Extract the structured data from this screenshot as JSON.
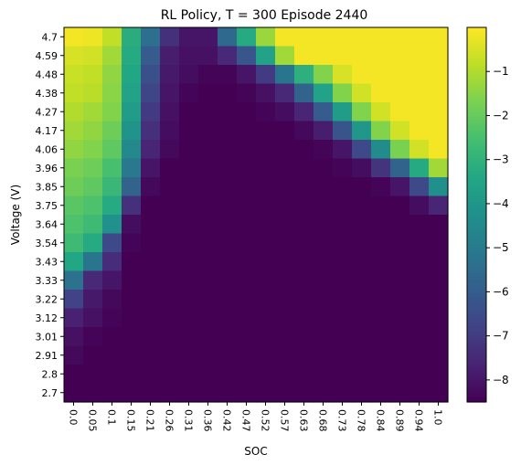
{
  "chart_data": {
    "type": "heatmap",
    "title": "RL Policy, T = 300 Episode 2440",
    "xlabel": "SOC",
    "ylabel": "Voltage (V)",
    "x_ticks": [
      "0.0",
      "0.05",
      "0.1",
      "0.15",
      "0.21",
      "0.26",
      "0.31",
      "0.36",
      "0.42",
      "0.47",
      "0.52",
      "0.57",
      "0.63",
      "0.68",
      "0.73",
      "0.78",
      "0.84",
      "0.89",
      "0.94",
      "1.0"
    ],
    "y_ticks_top_to_bottom": [
      "4.7",
      "4.59",
      "4.48",
      "4.38",
      "4.27",
      "4.17",
      "4.06",
      "3.96",
      "3.85",
      "3.75",
      "3.64",
      "3.54",
      "3.43",
      "3.33",
      "3.22",
      "3.12",
      "3.01",
      "2.91",
      "2.8",
      "2.7"
    ],
    "colorbar": {
      "colormap": "viridis",
      "range": [
        -8.5,
        0
      ],
      "ticks": [
        -8,
        -7,
        -6,
        -5,
        -4,
        -3,
        -2,
        -1
      ],
      "tick_labels": [
        "−8",
        "−7",
        "−6",
        "−5",
        "−4",
        "−3",
        "−2",
        "−1"
      ]
    },
    "rows_top_to_bottom": [
      [
        -0.1,
        -0.2,
        -0.8,
        -3.2,
        -5.4,
        -7.3,
        -8.0,
        -8.0,
        -5.6,
        -3.3,
        -1.3,
        -0.1,
        -0.1,
        -0.1,
        -0.1,
        -0.1,
        -0.1,
        -0.1,
        -0.1,
        -0.1
      ],
      [
        -0.5,
        -0.6,
        -1.2,
        -3.3,
        -6.0,
        -7.8,
        -8.1,
        -8.1,
        -7.5,
        -6.2,
        -3.6,
        -1.2,
        -0.1,
        -0.1,
        -0.1,
        -0.1,
        -0.1,
        -0.1,
        -0.1,
        -0.1
      ],
      [
        -0.7,
        -0.8,
        -1.4,
        -3.4,
        -6.4,
        -7.9,
        -8.2,
        -8.4,
        -8.4,
        -8.0,
        -7.0,
        -5.2,
        -3.1,
        -1.6,
        -0.5,
        -0.1,
        -0.1,
        -0.1,
        -0.1,
        -0.1
      ],
      [
        -0.8,
        -0.9,
        -1.5,
        -3.6,
        -6.7,
        -8.0,
        -8.4,
        -8.5,
        -8.5,
        -8.4,
        -8.1,
        -7.5,
        -5.8,
        -3.6,
        -1.6,
        -0.6,
        -0.1,
        -0.1,
        -0.1,
        -0.1
      ],
      [
        -1.0,
        -1.2,
        -1.6,
        -3.8,
        -7.0,
        -8.1,
        -8.5,
        -8.5,
        -8.5,
        -8.5,
        -8.4,
        -8.2,
        -7.6,
        -6.0,
        -3.8,
        -1.6,
        -0.6,
        -0.1,
        -0.1,
        -0.1
      ],
      [
        -1.2,
        -1.4,
        -1.9,
        -4.1,
        -7.3,
        -8.2,
        -8.5,
        -8.5,
        -8.5,
        -8.5,
        -8.5,
        -8.5,
        -8.3,
        -7.8,
        -6.3,
        -4.0,
        -1.6,
        -0.6,
        -0.1,
        -0.1
      ],
      [
        -1.4,
        -1.6,
        -2.1,
        -4.5,
        -7.6,
        -8.3,
        -8.5,
        -8.5,
        -8.5,
        -8.5,
        -8.5,
        -8.5,
        -8.5,
        -8.4,
        -8.0,
        -6.6,
        -4.4,
        -1.7,
        -0.6,
        -0.1
      ],
      [
        -1.7,
        -1.9,
        -2.5,
        -5.1,
        -8.0,
        -8.5,
        -8.5,
        -8.5,
        -8.5,
        -8.5,
        -8.5,
        -8.5,
        -8.5,
        -8.5,
        -8.4,
        -8.2,
        -7.2,
        -5.8,
        -3.3,
        -1.2
      ],
      [
        -1.9,
        -2.1,
        -2.8,
        -5.8,
        -8.3,
        -8.5,
        -8.5,
        -8.5,
        -8.5,
        -8.5,
        -8.5,
        -8.5,
        -8.5,
        -8.5,
        -8.5,
        -8.5,
        -8.4,
        -8.0,
        -6.6,
        -4.3
      ],
      [
        -2.2,
        -2.4,
        -3.3,
        -7.3,
        -8.5,
        -8.5,
        -8.5,
        -8.5,
        -8.5,
        -8.5,
        -8.5,
        -8.5,
        -8.5,
        -8.5,
        -8.5,
        -8.5,
        -8.5,
        -8.5,
        -8.2,
        -7.6
      ],
      [
        -2.4,
        -2.7,
        -4.2,
        -8.2,
        -8.5,
        -8.5,
        -8.5,
        -8.5,
        -8.5,
        -8.5,
        -8.5,
        -8.5,
        -8.5,
        -8.5,
        -8.5,
        -8.5,
        -8.5,
        -8.5,
        -8.5,
        -8.5
      ],
      [
        -2.7,
        -3.3,
        -6.6,
        -8.4,
        -8.5,
        -8.5,
        -8.5,
        -8.5,
        -8.5,
        -8.5,
        -8.5,
        -8.5,
        -8.5,
        -8.5,
        -8.5,
        -8.5,
        -8.5,
        -8.5,
        -8.5,
        -8.5
      ],
      [
        -3.4,
        -5.2,
        -7.4,
        -8.5,
        -8.5,
        -8.5,
        -8.5,
        -8.5,
        -8.5,
        -8.5,
        -8.5,
        -8.5,
        -8.5,
        -8.5,
        -8.5,
        -8.5,
        -8.5,
        -8.5,
        -8.5,
        -8.5
      ],
      [
        -5.3,
        -7.5,
        -8.0,
        -8.5,
        -8.5,
        -8.5,
        -8.5,
        -8.5,
        -8.5,
        -8.5,
        -8.5,
        -8.5,
        -8.5,
        -8.5,
        -8.5,
        -8.5,
        -8.5,
        -8.5,
        -8.5,
        -8.5
      ],
      [
        -6.8,
        -7.9,
        -8.3,
        -8.5,
        -8.5,
        -8.5,
        -8.5,
        -8.5,
        -8.5,
        -8.5,
        -8.5,
        -8.5,
        -8.5,
        -8.5,
        -8.5,
        -8.5,
        -8.5,
        -8.5,
        -8.5,
        -8.5
      ],
      [
        -7.7,
        -8.1,
        -8.4,
        -8.5,
        -8.5,
        -8.5,
        -8.5,
        -8.5,
        -8.5,
        -8.5,
        -8.5,
        -8.5,
        -8.5,
        -8.5,
        -8.5,
        -8.5,
        -8.5,
        -8.5,
        -8.5,
        -8.5
      ],
      [
        -8.1,
        -8.4,
        -8.5,
        -8.5,
        -8.5,
        -8.5,
        -8.5,
        -8.5,
        -8.5,
        -8.5,
        -8.5,
        -8.5,
        -8.5,
        -8.5,
        -8.5,
        -8.5,
        -8.5,
        -8.5,
        -8.5,
        -8.5
      ],
      [
        -8.3,
        -8.5,
        -8.5,
        -8.5,
        -8.5,
        -8.5,
        -8.5,
        -8.5,
        -8.5,
        -8.5,
        -8.5,
        -8.5,
        -8.5,
        -8.5,
        -8.5,
        -8.5,
        -8.5,
        -8.5,
        -8.5,
        -8.5
      ],
      [
        -8.5,
        -8.5,
        -8.5,
        -8.5,
        -8.5,
        -8.5,
        -8.5,
        -8.5,
        -8.5,
        -8.5,
        -8.5,
        -8.5,
        -8.5,
        -8.5,
        -8.5,
        -8.5,
        -8.5,
        -8.5,
        -8.5,
        -8.5
      ],
      [
        -8.5,
        -8.5,
        -8.5,
        -8.5,
        -8.5,
        -8.5,
        -8.5,
        -8.5,
        -8.5,
        -8.5,
        -8.5,
        -8.5,
        -8.5,
        -8.5,
        -8.5,
        -8.5,
        -8.5,
        -8.5,
        -8.5,
        -8.5
      ]
    ],
    "grid": false,
    "legend": "colorbar-right"
  }
}
